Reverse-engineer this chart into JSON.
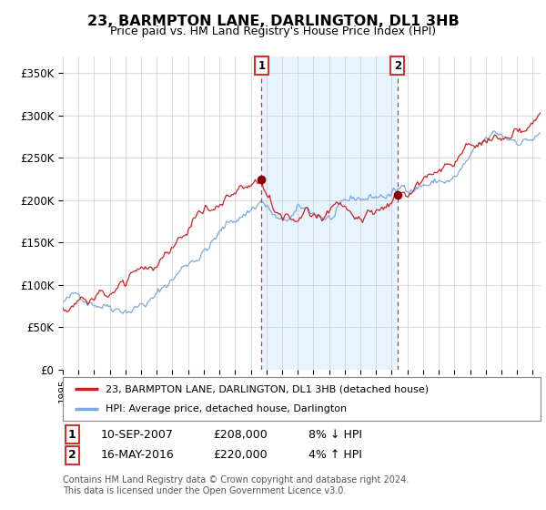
{
  "title": "23, BARMPTON LANE, DARLINGTON, DL1 3HB",
  "subtitle": "Price paid vs. HM Land Registry's House Price Index (HPI)",
  "hpi_color": "#7aaadd",
  "price_color": "#cc2222",
  "shade_color": "#ddeeff",
  "ylim": [
    0,
    370000
  ],
  "yticks": [
    0,
    50000,
    100000,
    150000,
    200000,
    250000,
    300000,
    350000
  ],
  "ytick_labels": [
    "£0",
    "£50K",
    "£100K",
    "£150K",
    "£200K",
    "£250K",
    "£300K",
    "£350K"
  ],
  "legend_label_price": "23, BARMPTON LANE, DARLINGTON, DL1 3HB (detached house)",
  "legend_label_hpi": "HPI: Average price, detached house, Darlington",
  "transaction1_label": "1",
  "transaction1_date": "10-SEP-2007",
  "transaction1_price": "£208,000",
  "transaction1_hpi": "8% ↓ HPI",
  "transaction1_x": 2007.69,
  "transaction1_y": 208000,
  "transaction2_label": "2",
  "transaction2_date": "16-MAY-2016",
  "transaction2_price": "£220,000",
  "transaction2_hpi": "4% ↑ HPI",
  "transaction2_x": 2016.37,
  "transaction2_y": 220000,
  "footer": "Contains HM Land Registry data © Crown copyright and database right 2024.\nThis data is licensed under the Open Government Licence v3.0.",
  "background_color": "#ffffff",
  "grid_color": "#cccccc",
  "xmin": 1995.0,
  "xmax": 2025.5
}
